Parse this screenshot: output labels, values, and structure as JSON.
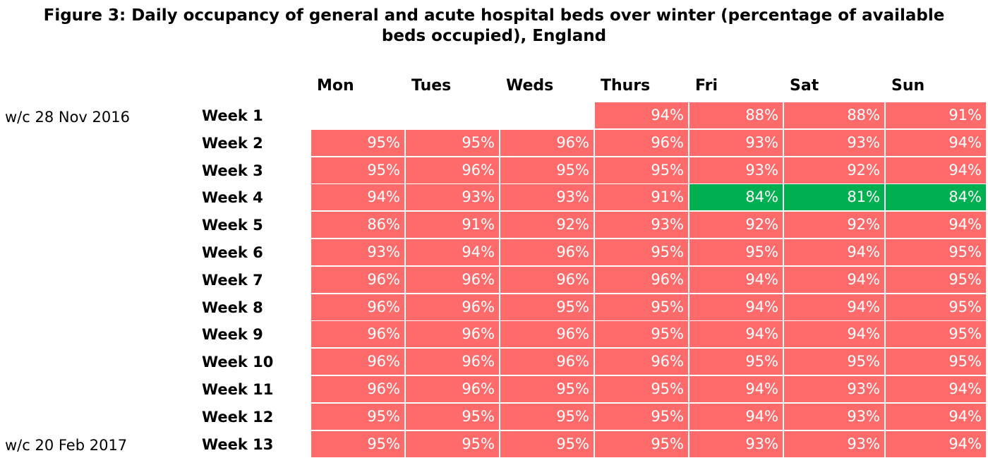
{
  "title_line1": "Figure 3: Daily occupancy of general and acute hospital beds over winter (percentage of available",
  "title_line2": "beds occupied), England",
  "row_notes": {
    "first": "w/c 28 Nov 2016",
    "last": "w/c 20 Feb 2017"
  },
  "colors": {
    "high": "#ff6b6b",
    "low": "#00b050",
    "gridline": "#ffffff"
  },
  "chart_data": {
    "type": "heatmap",
    "title": "Figure 3: Daily occupancy of general and acute hospital beds over winter (percentage of available beds occupied), England",
    "columns": [
      "Mon",
      "Tues",
      "Weds",
      "Thurs",
      "Fri",
      "Sat",
      "Sun"
    ],
    "rows": [
      "Week 1",
      "Week 2",
      "Week 3",
      "Week 4",
      "Week 5",
      "Week 6",
      "Week 7",
      "Week 8",
      "Week 9",
      "Week 10",
      "Week 11",
      "Week 12",
      "Week 13"
    ],
    "values": [
      [
        null,
        null,
        null,
        94,
        88,
        88,
        91
      ],
      [
        95,
        95,
        96,
        96,
        93,
        93,
        94
      ],
      [
        95,
        96,
        95,
        95,
        93,
        92,
        94
      ],
      [
        94,
        93,
        93,
        91,
        84,
        81,
        84
      ],
      [
        86,
        91,
        92,
        93,
        92,
        92,
        94
      ],
      [
        93,
        94,
        96,
        95,
        95,
        94,
        95
      ],
      [
        96,
        96,
        96,
        96,
        94,
        94,
        95
      ],
      [
        96,
        96,
        95,
        95,
        94,
        94,
        95
      ],
      [
        96,
        96,
        96,
        95,
        94,
        94,
        95
      ],
      [
        96,
        96,
        96,
        96,
        95,
        95,
        95
      ],
      [
        96,
        96,
        95,
        95,
        94,
        93,
        94
      ],
      [
        95,
        95,
        95,
        95,
        94,
        93,
        94
      ],
      [
        95,
        95,
        95,
        95,
        93,
        93,
        94
      ]
    ],
    "value_suffix": "%",
    "low_cells": [
      [
        3,
        4
      ],
      [
        3,
        5
      ],
      [
        3,
        6
      ]
    ]
  }
}
